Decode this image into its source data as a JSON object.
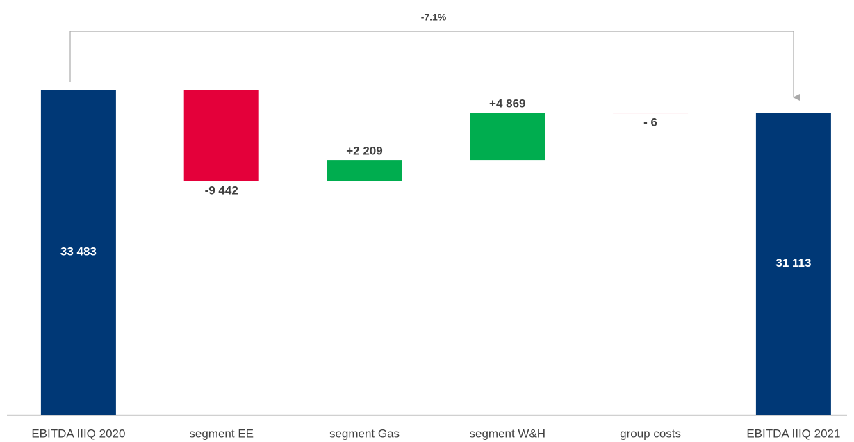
{
  "chart_data": {
    "type": "waterfall",
    "categories": [
      "EBITDA IIIQ 2020",
      "segment EE",
      "segment Gas",
      "segment W&H",
      "group costs",
      "EBITDA IIIQ 2021"
    ],
    "values": [
      33483,
      -9442,
      2209,
      4869,
      -6,
      31113
    ],
    "value_labels": [
      "33 483",
      "-9 442",
      "+2 209",
      "+4 869",
      "- 6",
      "31 113"
    ],
    "measure": [
      "total",
      "relative",
      "relative",
      "relative",
      "relative",
      "total"
    ],
    "colors": [
      "#003876",
      "#e4003a",
      "#00ad4f",
      "#00ad4f",
      "#e4003a",
      "#003876"
    ],
    "annotation": "-7.1%"
  }
}
